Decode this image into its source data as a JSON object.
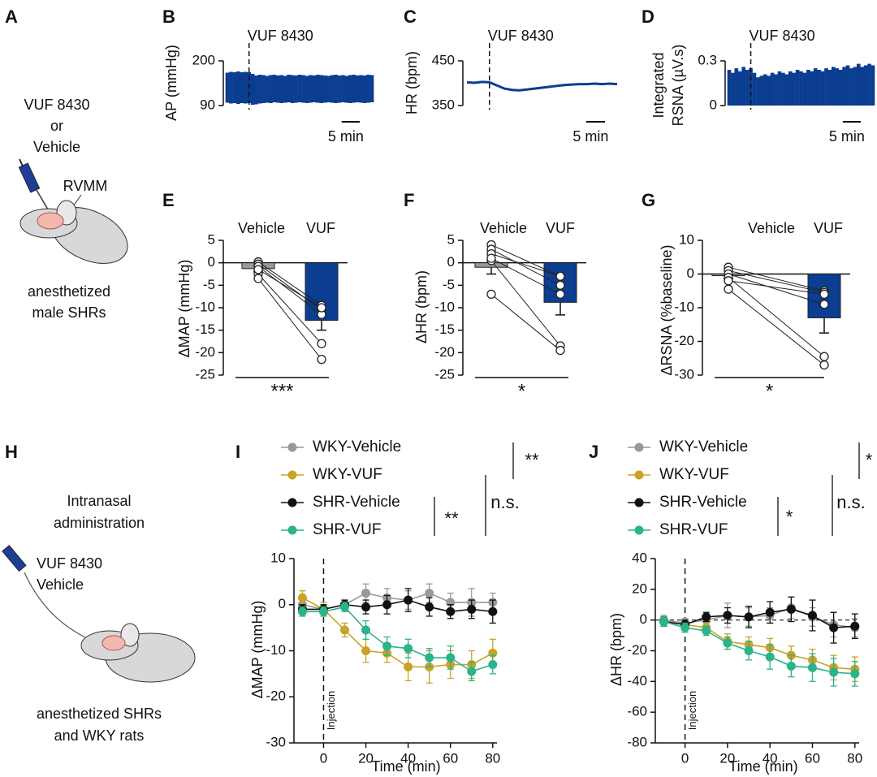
{
  "panel_labels": [
    "A",
    "B",
    "C",
    "D",
    "E",
    "F",
    "G",
    "H",
    "I",
    "J"
  ],
  "schematic_a": {
    "drug": "VUF 8430",
    "or": "or",
    "vehicle": "Vehicle",
    "site": "RVMM",
    "subject": [
      "anesthetized",
      "male SHRs"
    ]
  },
  "schematic_h": {
    "route": [
      "Intranasal",
      "administration"
    ],
    "drug": "VUF 8430",
    "vehicle": "Vehicle",
    "subject": [
      "anesthetized SHRs",
      "and WKY rats"
    ]
  },
  "chart_data": [
    {
      "type": "trace",
      "style": "band",
      "ylabel": "AP (mmHg)",
      "annotation": "VUF 8430",
      "injection_x": 6,
      "color": "#0b3d91",
      "xlim": [
        0,
        40
      ],
      "ylim": [
        90,
        200
      ],
      "yticks": [
        200,
        90
      ],
      "scale_bar": {
        "value": 5,
        "label": "5 min"
      },
      "x": [
        0,
        1,
        2,
        3,
        4,
        5,
        6,
        7,
        8,
        9,
        10,
        11,
        12,
        13,
        14,
        15,
        16,
        17,
        18,
        19,
        20,
        21,
        22,
        23,
        24,
        25,
        26,
        27,
        28,
        29,
        30,
        31,
        32,
        33,
        34,
        35,
        36,
        37,
        38,
        39,
        40
      ],
      "upper": [
        171,
        173,
        172,
        174,
        172,
        173,
        172,
        168,
        164,
        166,
        165,
        163,
        165,
        166,
        164,
        165,
        163,
        166,
        165,
        164,
        166,
        165,
        163,
        165,
        164,
        166,
        165,
        164,
        163,
        165,
        166,
        164,
        165,
        163,
        165,
        166,
        164,
        165,
        164,
        166,
        165
      ],
      "lower": [
        97,
        95,
        96,
        94,
        96,
        95,
        96,
        92,
        93,
        95,
        96,
        97,
        96,
        98,
        97,
        96,
        97,
        98,
        96,
        97,
        98,
        97,
        96,
        97,
        98,
        97,
        96,
        97,
        98,
        97,
        96,
        97,
        98,
        97,
        96,
        97,
        98,
        97,
        96,
        97,
        98
      ]
    },
    {
      "type": "trace",
      "style": "line",
      "ylabel": "HR (bpm)",
      "annotation": "VUF 8430",
      "injection_x": 6,
      "color": "#0b3d91",
      "xlim": [
        0,
        40
      ],
      "ylim": [
        350,
        450
      ],
      "yticks": [
        450,
        350
      ],
      "scale_bar": {
        "value": 5,
        "label": "5 min"
      },
      "x": [
        0,
        2,
        4,
        6,
        8,
        10,
        12,
        14,
        16,
        18,
        20,
        22,
        24,
        26,
        28,
        30,
        32,
        34,
        36,
        38,
        40
      ],
      "values": [
        402,
        401,
        403,
        402,
        395,
        388,
        385,
        384,
        386,
        388,
        390,
        392,
        394,
        396,
        397,
        398,
        398,
        399,
        398,
        399,
        398
      ]
    },
    {
      "type": "trace",
      "style": "bars",
      "ylabel": [
        "Integrated",
        "RSNA (µV.s)"
      ],
      "annotation": "VUF 8430",
      "injection_x": 6,
      "color": "#0b3d91",
      "xlim": [
        0,
        40
      ],
      "ylim": [
        0,
        0.3
      ],
      "yticks": [
        0.3,
        0
      ],
      "scale_bar": {
        "value": 5,
        "label": "5 min"
      },
      "x": [
        0,
        1,
        2,
        3,
        4,
        5,
        6,
        7,
        8,
        9,
        10,
        11,
        12,
        13,
        14,
        15,
        16,
        17,
        18,
        19,
        20,
        21,
        22,
        23,
        24,
        25,
        26,
        27,
        28,
        29,
        30,
        31,
        32,
        33,
        34,
        35,
        36,
        37,
        38,
        39,
        40
      ],
      "values": [
        0.24,
        0.22,
        0.25,
        0.23,
        0.26,
        0.24,
        0.25,
        0.22,
        0.19,
        0.2,
        0.21,
        0.2,
        0.22,
        0.21,
        0.23,
        0.22,
        0.21,
        0.23,
        0.22,
        0.24,
        0.23,
        0.22,
        0.24,
        0.23,
        0.25,
        0.24,
        0.23,
        0.25,
        0.24,
        0.26,
        0.25,
        0.24,
        0.26,
        0.27,
        0.25,
        0.26,
        0.28,
        0.26,
        0.27,
        0.28,
        0.27
      ]
    },
    {
      "type": "paired_bar",
      "ylabel": "ΔMAP (mmHg)",
      "categories": [
        "Vehicle",
        "VUF"
      ],
      "colors": [
        "#999999",
        "#0b3d91"
      ],
      "values": [
        -1.3,
        -12.8
      ],
      "errors": [
        0.7,
        2.2
      ],
      "points": [
        [
          0.2,
          -0.3,
          -0.8,
          -2.5,
          -3.5,
          -1.5
        ],
        [
          -9.5,
          -10.5,
          -11.5,
          -18,
          -21.5,
          -10
        ]
      ],
      "ylim": [
        -25,
        5
      ],
      "yticks": [
        5,
        0,
        -5,
        -10,
        -15,
        -20,
        -25
      ],
      "significance": "***"
    },
    {
      "type": "paired_bar",
      "ylabel": "ΔHR (bpm)",
      "categories": [
        "Vehicle",
        "VUF"
      ],
      "colors": [
        "#999999",
        "#0b3d91"
      ],
      "values": [
        -1,
        -8.8
      ],
      "errors": [
        1.5,
        2.8
      ],
      "points": [
        [
          4,
          3,
          2,
          0.5,
          -7,
          1
        ],
        [
          -3,
          -5,
          -3,
          -18.5,
          -19.5,
          -7
        ]
      ],
      "ylim": [
        -25,
        5
      ],
      "yticks": [
        5,
        0,
        -5,
        -10,
        -15,
        -20,
        -25
      ],
      "significance": "*"
    },
    {
      "type": "paired_bar",
      "ylabel": "ΔRSNA (%baseline)",
      "categories": [
        "Vehicle",
        "VUF"
      ],
      "colors": [
        "#999999",
        "#0b3d91"
      ],
      "values": [
        -0.5,
        -13
      ],
      "errors": [
        0.8,
        4.5
      ],
      "points": [
        [
          2,
          1,
          0,
          -1,
          -4.5,
          -2
        ],
        [
          -5,
          -5.5,
          -9,
          -24.5,
          -27,
          -6
        ]
      ],
      "ylim": [
        -30,
        10
      ],
      "yticks": [
        10,
        0,
        -10,
        -20,
        -30
      ],
      "significance": "*"
    },
    {
      "type": "line",
      "xlabel": "Time (min)",
      "ylabel": "ΔMAP (mmHg)",
      "annotation": "Injection",
      "injection_x": 0,
      "zero_line": false,
      "x": [
        -10,
        0,
        10,
        20,
        30,
        40,
        50,
        60,
        70,
        80
      ],
      "xlim": [
        -14,
        82
      ],
      "xticks": [
        0,
        20,
        40,
        60,
        80
      ],
      "ylim": [
        -30,
        10
      ],
      "yticks": [
        10,
        0,
        -10,
        -20,
        -30
      ],
      "series": [
        {
          "name": "WKY-Vehicle",
          "color": "#999999",
          "values": [
            0,
            -1,
            0,
            2.5,
            1.5,
            1,
            2.5,
            0.5,
            0.5,
            0.5
          ],
          "errors": [
            1.5,
            1,
            1,
            2,
            2,
            2,
            2,
            2,
            3,
            2
          ]
        },
        {
          "name": "WKY-VUF",
          "color": "#c9a227",
          "values": [
            1.5,
            -1,
            -5.5,
            -10,
            -10.5,
            -13.5,
            -13.5,
            -13,
            -13,
            -10.5
          ],
          "errors": [
            1.5,
            1.5,
            1.5,
            2.5,
            2,
            3,
            3.5,
            3,
            3,
            3
          ]
        },
        {
          "name": "SHR-Vehicle",
          "color": "#111111",
          "values": [
            -1,
            -1,
            0,
            -0.5,
            0,
            1,
            -0.5,
            -1.5,
            -1,
            -1.5
          ],
          "errors": [
            1,
            1,
            1,
            1.5,
            2,
            2.5,
            2,
            1.5,
            2,
            2.5
          ]
        },
        {
          "name": "SHR-VUF",
          "color": "#2bb38a",
          "values": [
            -1.5,
            -1.5,
            -0.5,
            -5.5,
            -9,
            -9.5,
            -11.5,
            -11.5,
            -14.5,
            -13
          ],
          "errors": [
            1,
            1,
            1,
            2,
            2,
            2,
            2,
            2.5,
            2,
            2
          ]
        }
      ],
      "significance": [
        "**",
        "**",
        "n.s."
      ]
    },
    {
      "type": "line",
      "xlabel": "Time (min)",
      "ylabel": "ΔHR (bpm)",
      "annotation": "Injection",
      "injection_x": 0,
      "zero_line": true,
      "x": [
        -10,
        0,
        10,
        20,
        30,
        40,
        50,
        60,
        70,
        80
      ],
      "xlim": [
        -14,
        82
      ],
      "xticks": [
        0,
        20,
        40,
        60,
        80
      ],
      "ylim": [
        -80,
        40
      ],
      "yticks": [
        40,
        20,
        0,
        -20,
        -40,
        -60,
        -80
      ],
      "series": [
        {
          "name": "WKY-Vehicle",
          "color": "#999999",
          "values": [
            0,
            -2,
            0,
            3,
            2,
            3,
            8,
            2,
            -3,
            -5
          ],
          "errors": [
            3,
            3,
            4,
            8,
            6,
            5,
            7,
            6,
            8,
            6
          ]
        },
        {
          "name": "WKY-VUF",
          "color": "#c9a227",
          "values": [
            -1,
            -3,
            -5,
            -14,
            -16,
            -18,
            -23,
            -26,
            -31,
            -32
          ],
          "errors": [
            3,
            3,
            3,
            5,
            5,
            6,
            6,
            7,
            8,
            8
          ]
        },
        {
          "name": "SHR-Vehicle",
          "color": "#111111",
          "values": [
            -1,
            -3,
            2,
            3,
            2,
            5,
            7,
            3,
            -5,
            -4
          ],
          "errors": [
            3,
            3,
            3,
            5,
            7,
            7,
            8,
            10,
            10,
            8
          ]
        },
        {
          "name": "SHR-VUF",
          "color": "#2bb38a",
          "values": [
            -1,
            -5,
            -7,
            -15,
            -20,
            -24,
            -30,
            -31,
            -34,
            -35
          ],
          "errors": [
            3,
            3,
            3,
            4,
            6,
            8,
            7,
            9,
            9,
            8
          ]
        }
      ],
      "significance": [
        "*",
        "*",
        "n.s."
      ]
    }
  ]
}
